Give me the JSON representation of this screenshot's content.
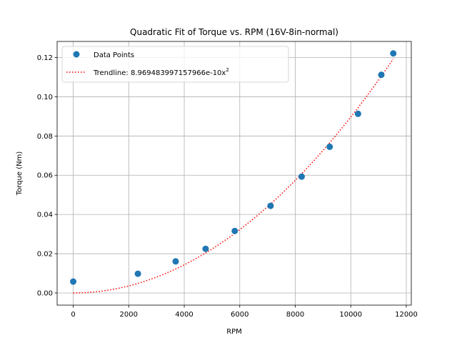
{
  "chart_data": {
    "type": "scatter",
    "title": "Quadratic Fit of Torque vs. RPM (16V-8in-normal)",
    "xlabel": "RPM",
    "ylabel": "Torque (Nm)",
    "xlim": [
      -580,
      12180
    ],
    "ylim": [
      -0.0062,
      0.1282
    ],
    "xticks": [
      0,
      2000,
      4000,
      6000,
      8000,
      10000,
      12000
    ],
    "xtick_labels": [
      "0",
      "2000",
      "4000",
      "6000",
      "8000",
      "10000",
      "12000"
    ],
    "yticks": [
      0.0,
      0.02,
      0.04,
      0.06,
      0.08,
      0.1,
      0.12
    ],
    "ytick_labels": [
      "0.00",
      "0.02",
      "0.04",
      "0.06",
      "0.08",
      "0.10",
      "0.12"
    ],
    "grid": true,
    "legend_position": "top-left",
    "series": [
      {
        "name": "Data Points",
        "kind": "scatter",
        "color": "#1f77b4",
        "x": [
          0,
          2330,
          3690,
          4770,
          5820,
          7110,
          8230,
          9240,
          10260,
          11100,
          11530
        ],
        "y": [
          0.0058,
          0.0098,
          0.0161,
          0.0225,
          0.0316,
          0.0444,
          0.0593,
          0.0745,
          0.0913,
          0.1112,
          0.1221
        ]
      },
      {
        "name": "Trendline: 8.969483997157966e-10x",
        "name_superscript": "2",
        "kind": "line",
        "style": "dotted",
        "color": "#ff0000",
        "coefficient": 8.969483997157966e-10,
        "x_range": [
          0,
          11530
        ]
      }
    ]
  }
}
